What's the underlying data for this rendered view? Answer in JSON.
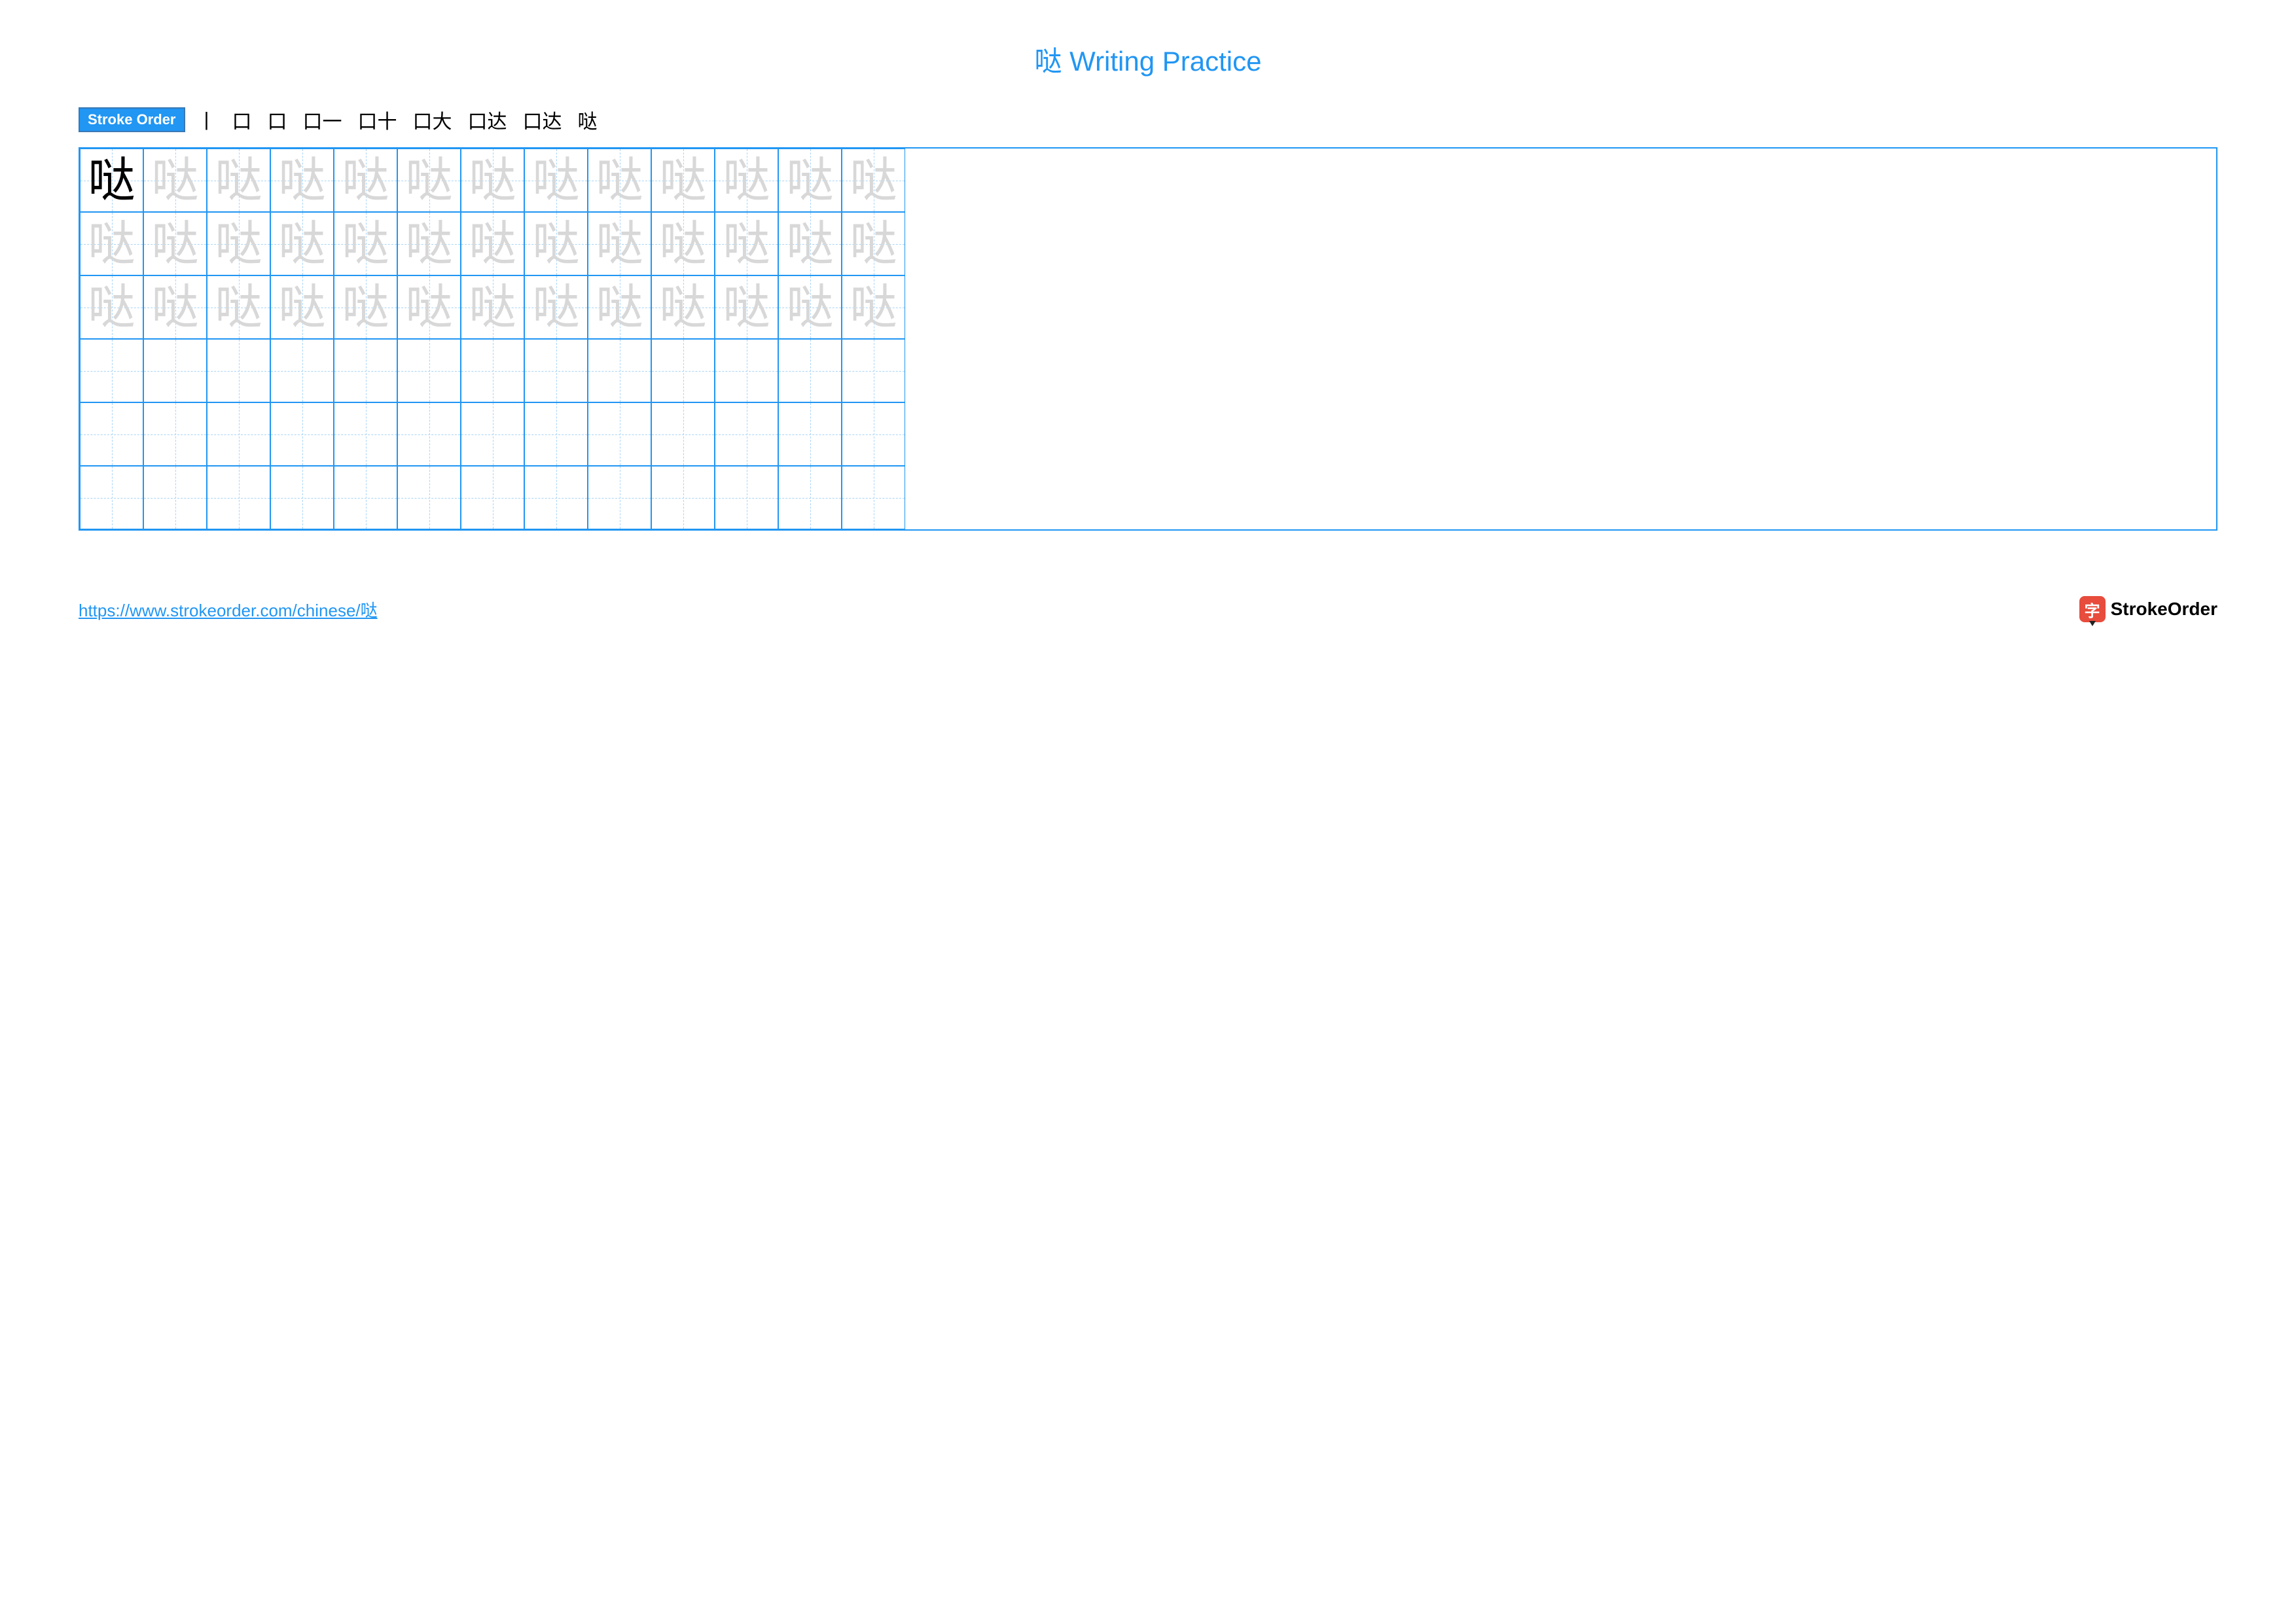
{
  "title_char": "哒",
  "title_suffix": " Writing Practice",
  "title_color": "#2196f3",
  "stroke_order_label": "Stroke Order",
  "stroke_steps": [
    "丨",
    "口",
    "口",
    "口一",
    "口十",
    "口大",
    "口达",
    "口达",
    "哒"
  ],
  "grid": {
    "rows": 6,
    "cols": 13,
    "character": "哒",
    "dark_cells": [
      [
        0,
        0
      ]
    ],
    "filled_rows": 3,
    "border_color": "#2196f3",
    "guide_color": "#a8d4f7",
    "light_char_color": "#d8d8d8",
    "dark_char_color": "#000000"
  },
  "footer_url": "https://www.strokeorder.com/chinese/哒",
  "footer_url_color": "#2196f3",
  "logo_icon_char": "字",
  "logo_text": "StrokeOrder",
  "logo_icon_bg": "#e74c3c"
}
